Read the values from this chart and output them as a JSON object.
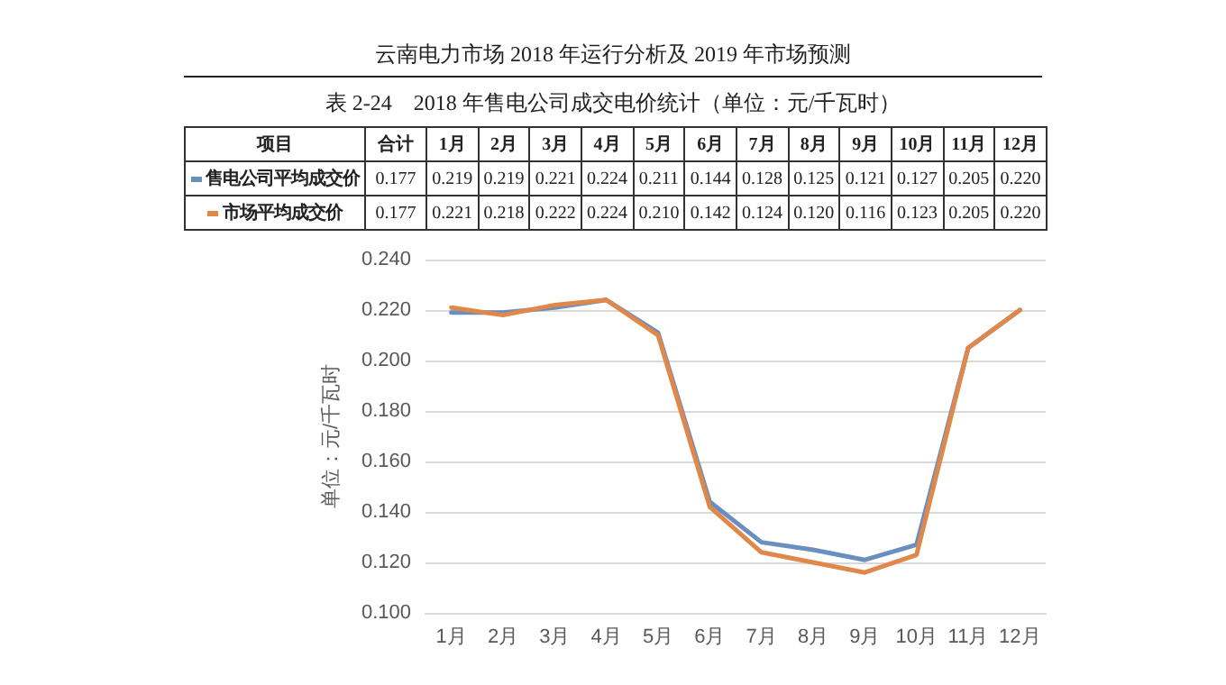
{
  "chart_data": {
    "type": "line",
    "title": "云南电力市场 2018 年运行分析及 2019 年市场预测",
    "subtitle": "表 2-24　2018 年售电公司成交电价统计（单位：元/千瓦时）",
    "ylabel": "单位：元/千瓦时",
    "annotations": [
      "项目",
      "合计"
    ],
    "totals": [
      "0.177",
      "0.177"
    ],
    "categories": [
      "1月",
      "2月",
      "3月",
      "4月",
      "5月",
      "6月",
      "7月",
      "8月",
      "9月",
      "10月",
      "11月",
      "12月"
    ],
    "series": [
      {
        "name": "售电公司平均成交价",
        "color": "#6a8fbf",
        "values": [
          0.219,
          0.219,
          0.221,
          0.224,
          0.211,
          0.144,
          0.128,
          0.125,
          0.121,
          0.127,
          0.205,
          0.22
        ],
        "value_labels": [
          "0.219",
          "0.219",
          "0.221",
          "0.224",
          "0.211",
          "0.144",
          "0.128",
          "0.125",
          "0.121",
          "0.127",
          "0.205",
          "0.220"
        ]
      },
      {
        "name": "市场平均成交价",
        "color": "#e0884a",
        "values": [
          0.221,
          0.218,
          0.222,
          0.224,
          0.21,
          0.142,
          0.124,
          0.12,
          0.116,
          0.123,
          0.205,
          0.22
        ],
        "value_labels": [
          "0.221",
          "0.218",
          "0.222",
          "0.224",
          "0.210",
          "0.142",
          "0.124",
          "0.120",
          "0.116",
          "0.123",
          "0.205",
          "0.220"
        ]
      }
    ],
    "ylim": [
      0.1,
      0.24
    ],
    "yticks": [
      {
        "value": 0.1,
        "label": "0.100"
      },
      {
        "value": 0.12,
        "label": "0.120"
      },
      {
        "value": 0.14,
        "label": "0.140"
      },
      {
        "value": 0.16,
        "label": "0.160"
      },
      {
        "value": 0.18,
        "label": "0.180"
      },
      {
        "value": 0.2,
        "label": "0.200"
      },
      {
        "value": 0.22,
        "label": "0.220"
      },
      {
        "value": 0.24,
        "label": "0.240"
      }
    ],
    "grid": "y",
    "legend": "top left",
    "marker": "none",
    "line_style": "solid"
  }
}
